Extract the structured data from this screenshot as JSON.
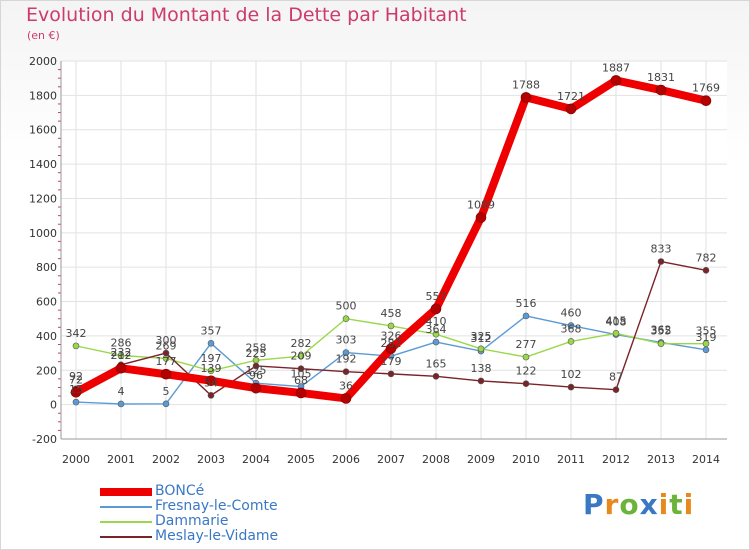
{
  "header": {
    "title": "Evolution du Montant de la Dette par Habitant",
    "subtitle": "(en €)"
  },
  "brand": {
    "text": "Proxiti",
    "colors": [
      "#3a78c4",
      "#e8891c",
      "#6bb33a",
      "#3a78c4",
      "#e8891c",
      "#6bb33a",
      "#e8891c"
    ]
  },
  "chart_data": {
    "type": "line",
    "title": "Evolution du Montant de la Dette par Habitant",
    "subtitle": "(en €)",
    "x": [
      "2000",
      "2001",
      "2002",
      "2003",
      "2004",
      "2005",
      "2006",
      "2007",
      "2008",
      "2009",
      "2010",
      "2011",
      "2012",
      "2013",
      "2014"
    ],
    "ylim": [
      -200,
      2000
    ],
    "yticks": [
      -200,
      0,
      200,
      400,
      600,
      800,
      1000,
      1200,
      1400,
      1600,
      1800,
      2000
    ],
    "grid": true,
    "legend_position": "bottom-left",
    "series": [
      {
        "name": "BONCé",
        "color": "#ee0000",
        "emphasis": "thick",
        "values": [
          72,
          212,
          177,
          139,
          96,
          68,
          36,
          326,
          557,
          1089,
          1788,
          1721,
          1887,
          1831,
          1769
        ],
        "labels": [
          "72",
          "212",
          "177",
          "139",
          "96",
          "68",
          "36",
          "326",
          "557",
          "1089",
          "1788",
          "1721",
          "1887",
          "1831",
          "1769"
        ]
      },
      {
        "name": "Fresnay-le-Comte",
        "color": "#5b9bd5",
        "values": [
          15,
          4,
          5,
          357,
          125,
          105,
          303,
          282,
          364,
          312,
          516,
          460,
          408,
          362,
          319
        ],
        "labels": [
          "15",
          "4",
          "5",
          "357",
          "125",
          "105",
          "303",
          "282",
          "364",
          "312",
          "516",
          "460",
          "408",
          "362",
          "319"
        ]
      },
      {
        "name": "Dammarie",
        "color": "#9ad84a",
        "values": [
          342,
          286,
          269,
          197,
          258,
          282,
          500,
          458,
          410,
          325,
          277,
          368,
          415,
          355,
          355
        ],
        "labels": [
          "342",
          "286",
          "269",
          "197",
          "258",
          "282",
          "500",
          "458",
          "410",
          "325",
          "277",
          "368",
          "415",
          "355",
          "355"
        ]
      },
      {
        "name": "Meslay-le-Vidame",
        "color": "#7a2328",
        "values": [
          92,
          232,
          300,
          54,
          225,
          209,
          192,
          179,
          165,
          138,
          122,
          102,
          87,
          833,
          782
        ],
        "labels": [
          "92",
          "232",
          "300",
          "54",
          "225",
          "209",
          "192",
          "179",
          "165",
          "138",
          "122",
          "102",
          "87",
          "833",
          "782"
        ]
      }
    ]
  }
}
